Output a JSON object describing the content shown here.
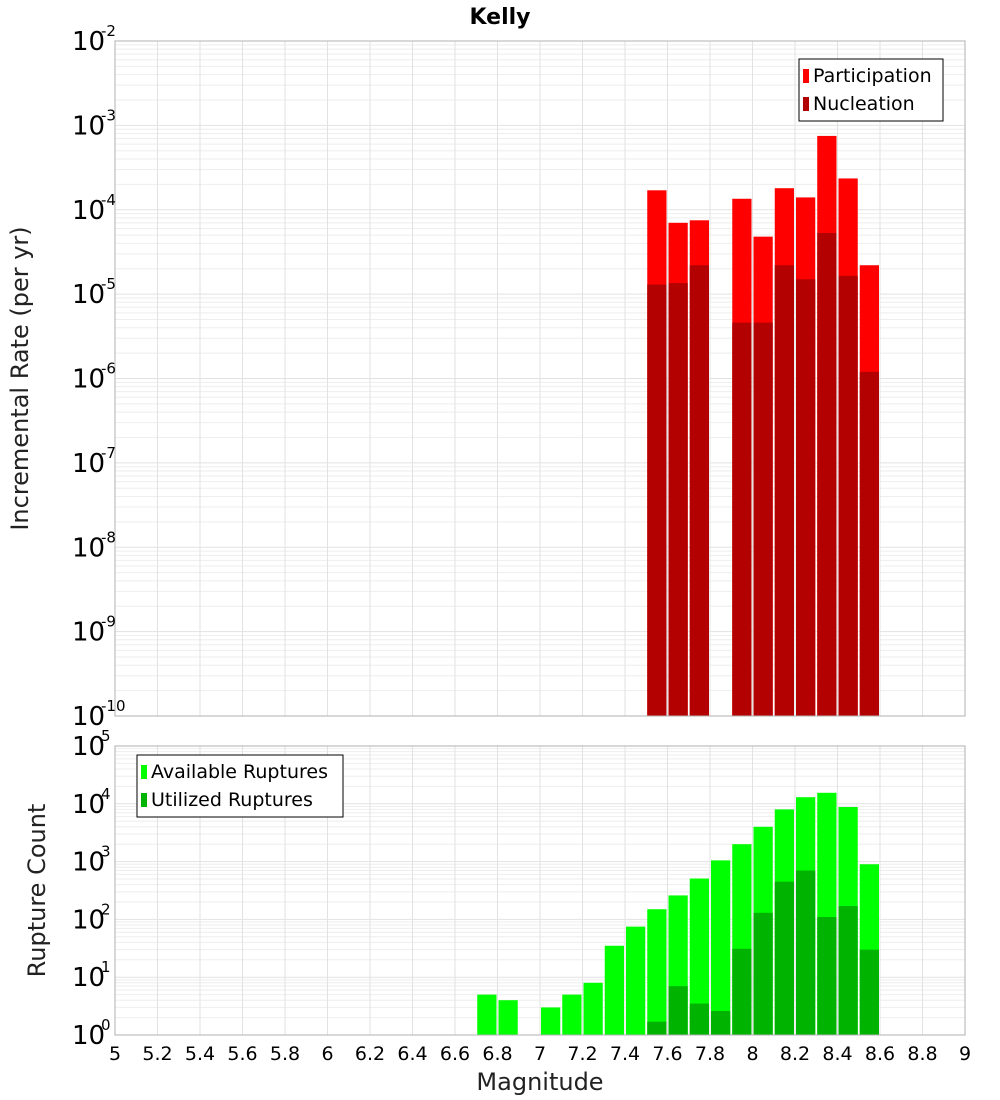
{
  "chart_data": {
    "title": "Kelly",
    "xlabel": "Magnitude",
    "xlim": [
      5,
      9
    ],
    "xticks": [
      "5",
      "5.2",
      "5.4",
      "5.6",
      "5.8",
      "6",
      "6.2",
      "6.4",
      "6.6",
      "6.8",
      "7",
      "7.2",
      "7.4",
      "7.6",
      "7.8",
      "8",
      "8.2",
      "8.4",
      "8.6",
      "8.8",
      "9"
    ],
    "bin_width": 0.1,
    "panels": [
      {
        "type": "bar",
        "yscale": "log",
        "ylabel": "Incremental Rate (per yr)",
        "ylim_exp": [
          -10,
          -2
        ],
        "yticks": [
          {
            "base": "10",
            "exp": "-2"
          },
          {
            "base": "10",
            "exp": "-3"
          },
          {
            "base": "10",
            "exp": "-4"
          },
          {
            "base": "10",
            "exp": "-5"
          },
          {
            "base": "10",
            "exp": "-6"
          },
          {
            "base": "10",
            "exp": "-7"
          },
          {
            "base": "10",
            "exp": "-8"
          },
          {
            "base": "10",
            "exp": "-9"
          },
          {
            "base": "10",
            "exp": "-10"
          }
        ],
        "legend": {
          "position": "top-right",
          "entries": [
            {
              "label": "Participation",
              "color": "#ff0000"
            },
            {
              "label": "Nucleation",
              "color": "#b30000"
            }
          ]
        },
        "x": [
          7.55,
          7.65,
          7.75,
          7.95,
          8.05,
          8.15,
          8.25,
          8.35,
          8.45,
          8.55
        ],
        "series": [
          {
            "name": "Participation",
            "color": "#ff0000",
            "values": [
              0.00017,
              7e-05,
              7.5e-05,
              0.000135,
              4.8e-05,
              0.00018,
              0.00014,
              0.00075,
              0.000235,
              2.2e-05
            ]
          },
          {
            "name": "Nucleation",
            "color": "#b30000",
            "values": [
              1.3e-05,
              1.35e-05,
              2.2e-05,
              4.6e-06,
              4.6e-06,
              2.2e-05,
              1.5e-05,
              5.3e-05,
              1.65e-05,
              1.2e-06
            ]
          }
        ]
      },
      {
        "type": "bar",
        "yscale": "log",
        "ylabel": "Rupture Count",
        "ylim_exp": [
          0,
          5
        ],
        "yticks": [
          {
            "base": "10",
            "exp": "5"
          },
          {
            "base": "10",
            "exp": "4"
          },
          {
            "base": "10",
            "exp": "3"
          },
          {
            "base": "10",
            "exp": "2"
          },
          {
            "base": "10",
            "exp": "1"
          },
          {
            "base": "10",
            "exp": "0"
          }
        ],
        "legend": {
          "position": "top-left",
          "entries": [
            {
              "label": "Available Ruptures",
              "color": "#00ff00"
            },
            {
              "label": "Utilized Ruptures",
              "color": "#00b300"
            }
          ]
        },
        "x": [
          6.75,
          6.85,
          7.05,
          7.15,
          7.25,
          7.35,
          7.45,
          7.55,
          7.65,
          7.75,
          7.85,
          7.95,
          8.05,
          8.15,
          8.25,
          8.35,
          8.45,
          8.55
        ],
        "series": [
          {
            "name": "Available Ruptures",
            "color": "#00ff00",
            "values": [
              5,
              4,
              3,
              5,
              8,
              35,
              75,
              150,
              260,
              510,
              1050,
              2000,
              4000,
              8000,
              13000,
              15500,
              8800,
              900
            ]
          },
          {
            "name": "Utilized Ruptures",
            "color": "#00b300",
            "values": [
              null,
              null,
              null,
              null,
              null,
              null,
              null,
              1.7,
              7,
              3.5,
              2.6,
              31,
              130,
              450,
              700,
              110,
              170,
              30
            ]
          }
        ]
      }
    ]
  }
}
